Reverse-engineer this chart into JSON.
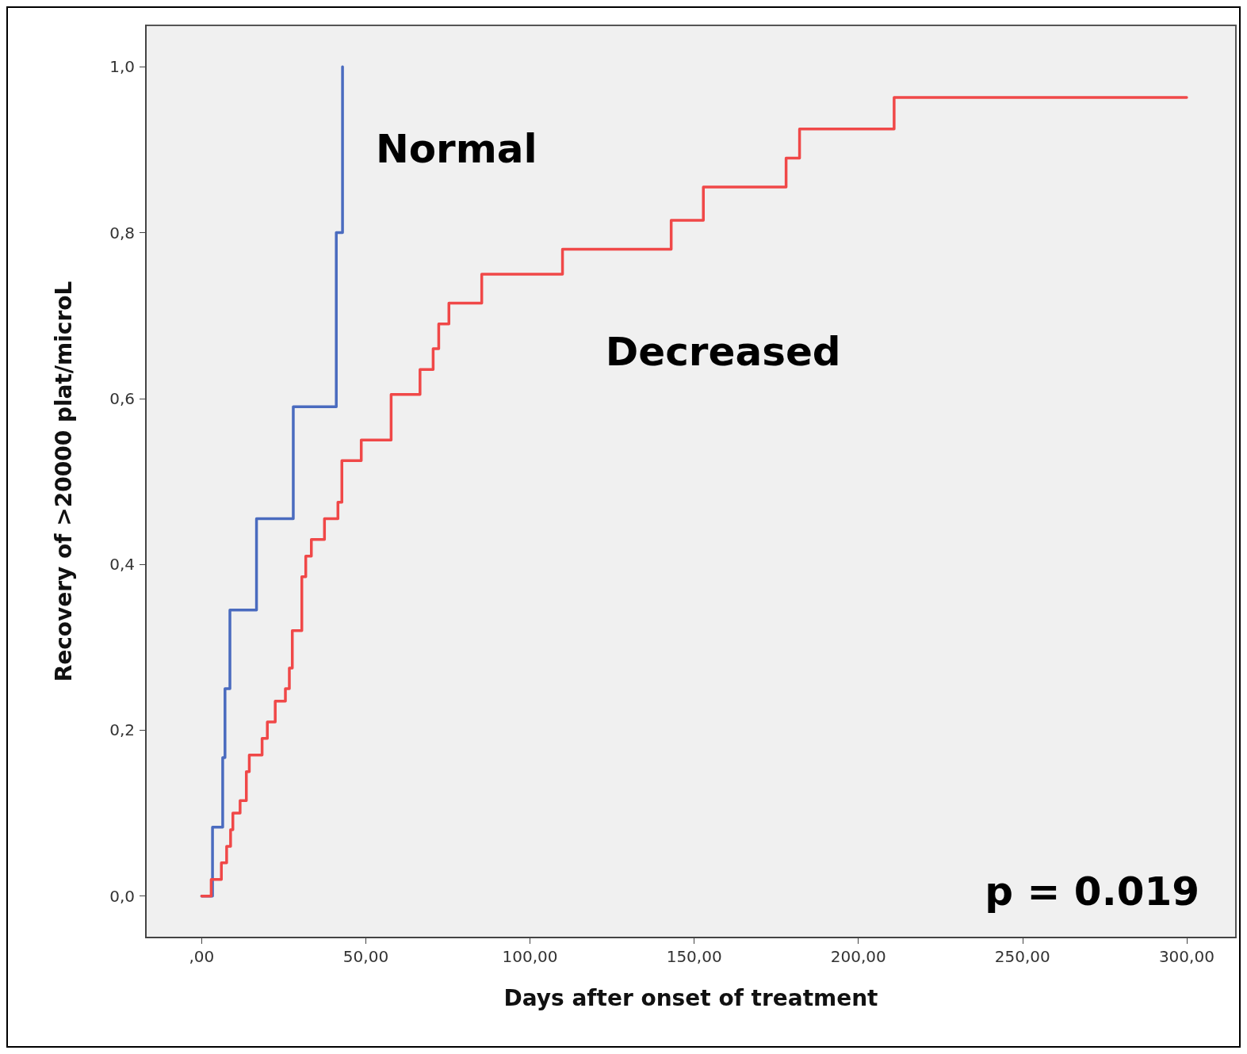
{
  "chart_data": {
    "type": "step",
    "xlabel": "Days after onset of treatment",
    "ylabel": "Recovery of >20000 plat/microL",
    "xlim": [
      -17,
      315
    ],
    "xticks": [
      {
        "value": 0,
        "label": ",00"
      },
      {
        "value": 50,
        "label": "50,00"
      },
      {
        "value": 100,
        "label": "100,00"
      },
      {
        "value": 150,
        "label": "150,00"
      },
      {
        "value": 200,
        "label": "200,00"
      },
      {
        "value": 250,
        "label": "250,00"
      },
      {
        "value": 300,
        "label": "300,00"
      }
    ],
    "ylim": [
      -0.05,
      1.05
    ],
    "yticks": [
      {
        "value": 0,
        "label": "0,0"
      },
      {
        "value": 0.2,
        "label": "0,2"
      },
      {
        "value": 0.4,
        "label": "0,4"
      },
      {
        "value": 0.6,
        "label": "0,6"
      },
      {
        "value": 0.8,
        "label": "0,8"
      },
      {
        "value": 1,
        "label": "1,0"
      }
    ],
    "grid": false,
    "legend": false,
    "marker": "none",
    "line_style": "solid",
    "annotations": [
      "p = 0.019"
    ],
    "series": [
      {
        "name": "Normal",
        "color": "#4a6bbf",
        "x": [
          0,
          3.3,
          6.4,
          7.1,
          8.6,
          16.7,
          27.9,
          41,
          42.9
        ],
        "values": [
          0,
          0.083,
          0.167,
          0.25,
          0.345,
          0.455,
          0.59,
          0.8,
          1.0
        ]
      },
      {
        "name": "Decreased",
        "color": "#f04848",
        "x": [
          0,
          2.9,
          6,
          7.6,
          8.8,
          9.5,
          11.7,
          13.6,
          14.5,
          18.4,
          20,
          22.4,
          25.5,
          26.7,
          27.6,
          30.5,
          31.7,
          33.4,
          37.4,
          41.5,
          42.7,
          48.6,
          57.7,
          66.5,
          70.5,
          72.2,
          75.3,
          85.3,
          109.9,
          143,
          152.8,
          178,
          182.1,
          210.9,
          300
        ],
        "values": [
          0,
          0.02,
          0.04,
          0.06,
          0.08,
          0.1,
          0.115,
          0.15,
          0.17,
          0.19,
          0.21,
          0.235,
          0.25,
          0.275,
          0.32,
          0.385,
          0.41,
          0.43,
          0.455,
          0.475,
          0.525,
          0.55,
          0.605,
          0.635,
          0.66,
          0.69,
          0.715,
          0.75,
          0.78,
          0.815,
          0.855,
          0.89,
          0.925,
          0.963,
          0.963
        ]
      }
    ]
  }
}
